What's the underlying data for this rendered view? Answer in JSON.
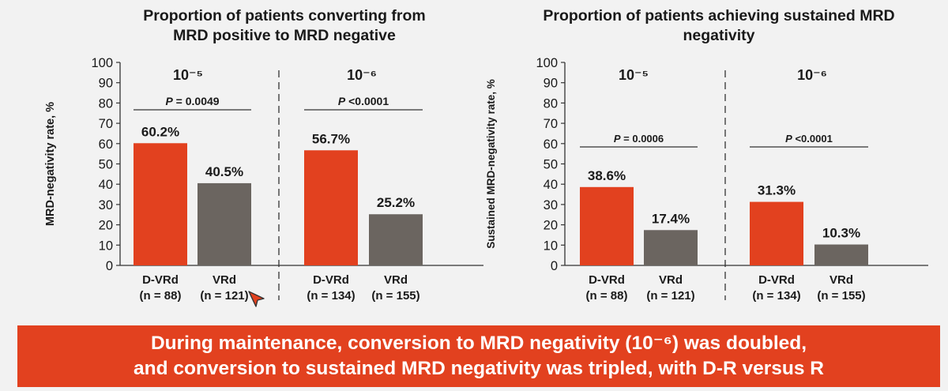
{
  "colors": {
    "dvrd": "#e2411f",
    "vrd": "#6b6560",
    "banner": "#e2411f",
    "banner_text": "#ffffff"
  },
  "footer": {
    "line1": "During maintenance, conversion to MRD negativity (10⁻⁶) was doubled,",
    "line2": "and conversion to sustained MRD negativity was tripled, with D-R versus R"
  },
  "chart_data": [
    {
      "type": "bar",
      "title": "Proportion of patients converting from\nMRD positive to MRD negative",
      "ylabel": "MRD-negativity rate, %",
      "ylim": [
        0,
        100
      ],
      "yticks": [
        "0",
        "10",
        "20",
        "30",
        "40",
        "50",
        "60",
        "70",
        "80",
        "90",
        "100"
      ],
      "groups": [
        {
          "label": "10⁻⁵",
          "pvalue": {
            "prefix": "P",
            "text": " = 0.0049"
          },
          "bars": [
            {
              "name": "D-VRd",
              "n": "(n = 88)",
              "value": 60.2,
              "value_label": "60.2%",
              "color": "#e2411f"
            },
            {
              "name": "VRd",
              "n": "(n = 121)",
              "value": 40.5,
              "value_label": "40.5%",
              "color": "#6b6560"
            }
          ]
        },
        {
          "label": "10⁻⁶",
          "pvalue": {
            "prefix": "P",
            "text": " <0.0001"
          },
          "bars": [
            {
              "name": "D-VRd",
              "n": "(n = 134)",
              "value": 56.7,
              "value_label": "56.7%",
              "color": "#e2411f"
            },
            {
              "name": "VRd",
              "n": "(n = 155)",
              "value": 25.2,
              "value_label": "25.2%",
              "color": "#6b6560"
            }
          ]
        }
      ]
    },
    {
      "type": "bar",
      "title": "Proportion of patients achieving sustained MRD\nnegativity",
      "ylabel": "Sustained MRD-negativity rate, %",
      "ylim": [
        0,
        100
      ],
      "yticks": [
        "0",
        "10",
        "20",
        "30",
        "40",
        "50",
        "60",
        "70",
        "80",
        "90",
        "100"
      ],
      "groups": [
        {
          "label": "10⁻⁵",
          "pvalue": {
            "prefix": "P",
            "text": " = 0.0006"
          },
          "bars": [
            {
              "name": "D-VRd",
              "n": "(n = 88)",
              "value": 38.6,
              "value_label": "38.6%",
              "color": "#e2411f"
            },
            {
              "name": "VRd",
              "n": "(n = 121)",
              "value": 17.4,
              "value_label": "17.4%",
              "color": "#6b6560"
            }
          ]
        },
        {
          "label": "10⁻⁶",
          "pvalue": {
            "prefix": "P",
            "text": " <0.0001"
          },
          "bars": [
            {
              "name": "D-VRd",
              "n": "(n = 134)",
              "value": 31.3,
              "value_label": "31.3%",
              "color": "#e2411f"
            },
            {
              "name": "VRd",
              "n": "(n = 155)",
              "value": 10.3,
              "value_label": "10.3%",
              "color": "#6b6560"
            }
          ]
        }
      ]
    }
  ]
}
